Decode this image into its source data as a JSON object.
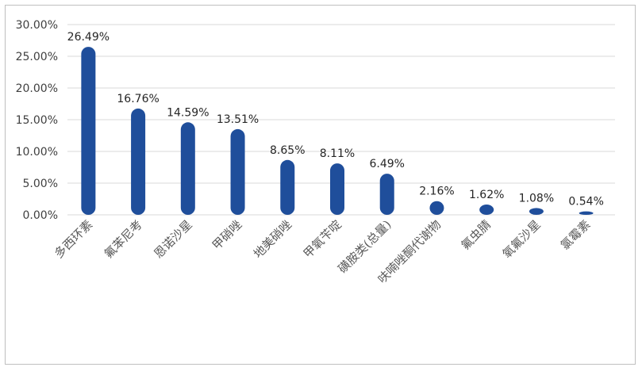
{
  "chart_data": {
    "type": "bar",
    "title": "",
    "xlabel": "",
    "ylabel": "",
    "ylim": [
      0,
      30
    ],
    "yticks": [
      "0.00%",
      "5.00%",
      "10.00%",
      "15.00%",
      "20.00%",
      "25.00%",
      "30.00%"
    ],
    "grid": true,
    "bar_color": "#1f4e9b",
    "categories": [
      "多西环素",
      "氟苯尼考",
      "恩诺沙星",
      "甲硝唑",
      "地美硝唑",
      "甲氧苄啶",
      "磺胺类(总量)",
      "呋喃唑酮代谢物",
      "氟虫腈",
      "氧氟沙星",
      "氯霉素"
    ],
    "values": [
      26.49,
      16.76,
      14.59,
      13.51,
      8.65,
      8.11,
      6.49,
      2.16,
      1.62,
      1.08,
      0.54
    ],
    "value_labels": [
      "26.49%",
      "16.76%",
      "14.59%",
      "13.51%",
      "8.65%",
      "8.11%",
      "6.49%",
      "2.16%",
      "1.62%",
      "1.08%",
      "0.54%"
    ]
  }
}
